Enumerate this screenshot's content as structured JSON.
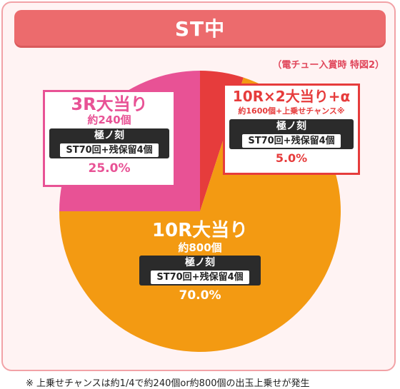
{
  "header": {
    "title": "ST中"
  },
  "caption": "（電チュー入賞時 特図2）",
  "chart_data": {
    "type": "pie",
    "title": "ST中",
    "slices": [
      {
        "name": "10R大当り",
        "value": 70.0,
        "label": "70.0%",
        "sub": "約800個",
        "mode": "極ノ刻",
        "detail": "ST70回+残保留4個",
        "color": "#f39a12"
      },
      {
        "name": "3R大当り",
        "value": 25.0,
        "label": "25.0%",
        "sub": "約240個",
        "mode": "極ノ刻",
        "detail": "ST70回+残保留4個",
        "color": "#e85295"
      },
      {
        "name": "10R×2大当り+α",
        "value": 5.0,
        "label": "5.0%",
        "sub": "約1600個+上乗せチャンス※",
        "mode": "極ノ刻",
        "detail": "ST70回+残保留4個",
        "color": "#e63c3c"
      }
    ]
  },
  "footnote": "※ 上乗せチャンスは約1/4で約240個or約800個の出玉上乗せが発生"
}
